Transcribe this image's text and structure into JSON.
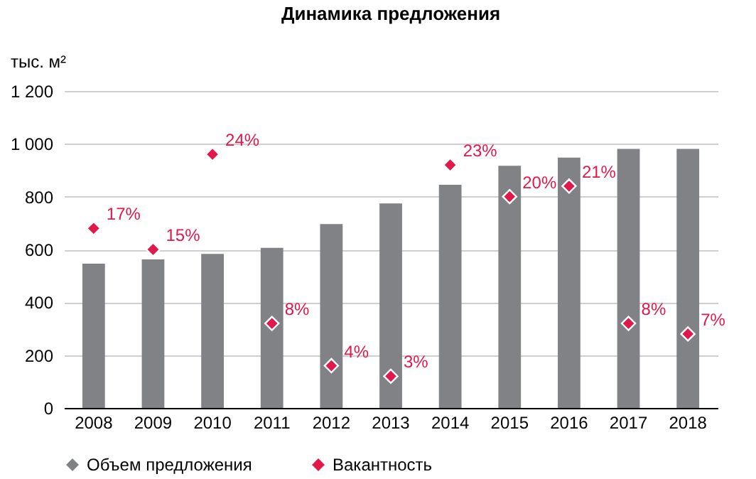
{
  "chart_data": {
    "type": "bar",
    "title": "Динамика предложения",
    "ylabel": "тыс. м²",
    "categories": [
      "2008",
      "2009",
      "2010",
      "2011",
      "2012",
      "2013",
      "2014",
      "2015",
      "2016",
      "2017",
      "2018"
    ],
    "series": [
      {
        "name": "Объем предложения",
        "color": "#808285",
        "values": [
          546,
          562,
          583,
          606,
          696,
          774,
          845,
          917,
          948,
          981,
          981
        ]
      },
      {
        "name": "Вакантность",
        "type": "scatter",
        "axis": "y2",
        "color": "#e0194a",
        "values": [
          17,
          15,
          24,
          8,
          4,
          3,
          23,
          20,
          21,
          8,
          7
        ],
        "value_labels": [
          "17%",
          "15%",
          "24%",
          "8%",
          "4%",
          "3%",
          "23%",
          "20%",
          "21%",
          "8%",
          "7%"
        ]
      }
    ],
    "ylim": [
      0,
      1200
    ],
    "yticks": [
      0,
      200,
      400,
      600,
      800,
      {
        "value": 1000,
        "label": "1 000"
      },
      {
        "value": 1200,
        "label": "1 200"
      }
    ],
    "y2lim": [
      0,
      30
    ],
    "tick_labels": "xy",
    "grid": "y",
    "legend": "bottom",
    "marker": "diamond"
  }
}
